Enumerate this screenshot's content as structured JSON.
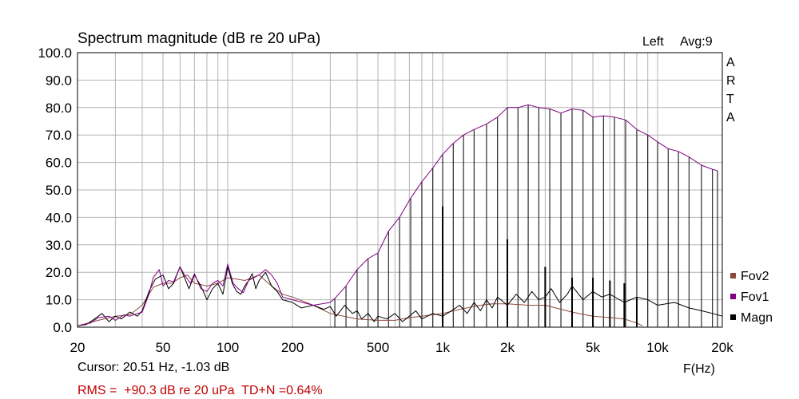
{
  "chart_data": {
    "type": "line",
    "title": "Spectrum magnitude (dB re 20 uPa)",
    "channel_label": "Left",
    "avg_label": "Avg:9",
    "brand_letters": [
      "A",
      "R",
      "T",
      "A"
    ],
    "xlabel": "F(Hz)",
    "ylabel": "",
    "x_scale": "log",
    "xlim": [
      20,
      20000
    ],
    "ylim": [
      0,
      100
    ],
    "grid": true,
    "legend_position": "right",
    "x_ticks": [
      {
        "value": 20,
        "label": "20"
      },
      {
        "value": 50,
        "label": "50"
      },
      {
        "value": 100,
        "label": "100"
      },
      {
        "value": 200,
        "label": "200"
      },
      {
        "value": 500,
        "label": "500"
      },
      {
        "value": 1000,
        "label": "1k"
      },
      {
        "value": 2000,
        "label": "2k"
      },
      {
        "value": 5000,
        "label": "5k"
      },
      {
        "value": 10000,
        "label": "10k"
      },
      {
        "value": 20000,
        "label": "20k"
      }
    ],
    "y_ticks": [
      {
        "value": 0,
        "label": "0.0"
      },
      {
        "value": 10,
        "label": "10.0"
      },
      {
        "value": 20,
        "label": "20.0"
      },
      {
        "value": 30,
        "label": "30.0"
      },
      {
        "value": 40,
        "label": "40.0"
      },
      {
        "value": 50,
        "label": "50.0"
      },
      {
        "value": 60,
        "label": "60.0"
      },
      {
        "value": 70,
        "label": "70.0"
      },
      {
        "value": 80,
        "label": "80.0"
      },
      {
        "value": 90,
        "label": "90.0"
      },
      {
        "value": 100,
        "label": "100.0"
      }
    ],
    "series": [
      {
        "name": "Fov2",
        "color": "#8B4A3A",
        "x": [
          20,
          25,
          30,
          35,
          40,
          45,
          50,
          55,
          60,
          65,
          70,
          75,
          80,
          90,
          100,
          110,
          120,
          130,
          140,
          160,
          180,
          200,
          250,
          300,
          400,
          500,
          600,
          700,
          800,
          1000,
          1200,
          1500,
          1700,
          2000,
          2500,
          3000,
          4000,
          5000,
          6000,
          7000,
          8000,
          8500
        ],
        "y": [
          0.5,
          2.5,
          4.0,
          4.5,
          8.0,
          14.5,
          16.0,
          16.0,
          18.0,
          19.0,
          16.0,
          15.5,
          15.0,
          16.0,
          18.0,
          17.5,
          17.0,
          18.0,
          19.0,
          15.0,
          12.0,
          11.0,
          8.0,
          5.0,
          3.0,
          2.5,
          2.5,
          3.5,
          4.0,
          5.0,
          6.5,
          8.0,
          8.5,
          8.5,
          8.0,
          8.0,
          5.5,
          4.0,
          3.5,
          3.0,
          1.5,
          0.5
        ]
      },
      {
        "name": "Fov1",
        "color": "#800080",
        "x": [
          20,
          23,
          25,
          28,
          30,
          33,
          35,
          38,
          40,
          43,
          45,
          48,
          50,
          53,
          56,
          60,
          63,
          67,
          70,
          75,
          80,
          85,
          90,
          95,
          100,
          106,
          112,
          118,
          125,
          132,
          140,
          150,
          160,
          170,
          180,
          200,
          250,
          300,
          315,
          355,
          400,
          450,
          500,
          560,
          630,
          710,
          800,
          900,
          1000,
          1120,
          1250,
          1400,
          1600,
          1800,
          2000,
          2240,
          2500,
          2800,
          3150,
          3550,
          4000,
          4500,
          5000,
          5600,
          6300,
          7100,
          8000,
          9000,
          10000,
          11200,
          12500,
          14000,
          16000,
          18000,
          19000
        ],
        "y": [
          0.5,
          1.5,
          3.5,
          4.0,
          2.5,
          4.5,
          4.0,
          5.0,
          5.5,
          12.0,
          18.0,
          21.0,
          15.0,
          17.0,
          16.5,
          22.0,
          19.0,
          16.0,
          19.5,
          14.0,
          13.0,
          16.0,
          17.0,
          15.0,
          23.0,
          16.0,
          14.0,
          12.5,
          17.0,
          18.0,
          19.0,
          21.0,
          19.0,
          16.0,
          11.0,
          10.0,
          8.0,
          9.0,
          10.5,
          15.0,
          21.0,
          25.0,
          27.0,
          35.0,
          40.0,
          47.0,
          53.0,
          58.0,
          63.0,
          67.0,
          70.0,
          72.0,
          74.0,
          76.5,
          80.0,
          80.0,
          81.0,
          80.0,
          79.5,
          78.0,
          79.5,
          79.0,
          76.5,
          77.0,
          76.5,
          75.5,
          72.0,
          70.0,
          67.5,
          65.0,
          64.0,
          62.0,
          59.0,
          57.5,
          57.0
        ]
      },
      {
        "name": "Magn",
        "color": "#000000",
        "x": [
          20,
          22,
          24,
          26,
          28,
          30,
          32,
          35,
          38,
          40,
          43,
          46,
          50,
          53,
          56,
          60,
          63,
          66,
          70,
          75,
          80,
          85,
          90,
          95,
          100,
          105,
          110,
          115,
          120,
          125,
          130,
          135,
          140,
          150,
          160,
          170,
          180,
          200,
          220,
          250,
          280,
          300,
          320,
          350,
          380,
          400,
          420,
          450,
          480,
          500,
          550,
          600,
          650,
          700,
          750,
          800,
          900,
          1000,
          1100,
          1200,
          1300,
          1400,
          1500,
          1600,
          1700,
          1800,
          2000,
          2200,
          2400,
          2600,
          2800,
          3000,
          3200,
          3500,
          3800,
          4000,
          4500,
          5000,
          5500,
          6000,
          7000,
          8000,
          9000,
          10000,
          12000,
          14000,
          16000,
          18000,
          20000
        ],
        "y": [
          0.5,
          1.0,
          3.0,
          5.0,
          2.0,
          4.0,
          3.0,
          5.5,
          4.0,
          6.0,
          13.0,
          17.5,
          19.0,
          14.0,
          16.0,
          22.0,
          18.0,
          14.0,
          19.0,
          15.0,
          10.0,
          14.0,
          16.0,
          12.0,
          22.0,
          16.0,
          13.0,
          12.0,
          15.0,
          17.0,
          19.5,
          14.0,
          17.0,
          20.0,
          15.0,
          13.0,
          10.0,
          9.0,
          7.0,
          8.0,
          6.5,
          7.5,
          4.0,
          8.0,
          5.0,
          6.0,
          3.0,
          5.0,
          2.0,
          4.0,
          3.0,
          5.0,
          2.0,
          4.0,
          6.0,
          3.0,
          5.0,
          4.0,
          6.0,
          8.0,
          5.0,
          9.0,
          6.0,
          10.0,
          7.0,
          11.0,
          8.0,
          12.0,
          9.0,
          13.0,
          10.0,
          11.0,
          14.0,
          9.0,
          12.0,
          15.0,
          10.0,
          13.0,
          11.0,
          12.0,
          9.0,
          11.0,
          10.0,
          8.0,
          9.0,
          7.0,
          6.0,
          5.0,
          4.0
        ]
      }
    ],
    "peak_spikes": {
      "color": "#000000",
      "x": [
        1000,
        2000,
        3000,
        4000,
        5000,
        6000,
        7000,
        8000
      ],
      "y": [
        44.0,
        32.0,
        22.0,
        18.0,
        18.0,
        17.0,
        16.0,
        11.0
      ]
    },
    "harmonic_lines": {
      "color": "#000000",
      "x": [
        315,
        355,
        400,
        450,
        500,
        560,
        630,
        710,
        800,
        900,
        1000,
        1120,
        1250,
        1400,
        1600,
        1800,
        2000,
        2240,
        2500,
        2800,
        3150,
        3550,
        4000,
        4500,
        5000,
        5600,
        6300,
        7100,
        8000,
        9000,
        10000,
        11200,
        12500,
        14000,
        16000,
        18000,
        19000
      ],
      "y": [
        10.5,
        15.0,
        21.0,
        25.0,
        27.0,
        35.0,
        40.0,
        47.0,
        53.0,
        58.0,
        63.0,
        67.0,
        70.0,
        72.0,
        74.0,
        76.5,
        80.0,
        80.0,
        81.0,
        80.0,
        79.5,
        78.0,
        79.5,
        79.0,
        76.5,
        77.0,
        76.5,
        75.5,
        72.0,
        70.0,
        67.5,
        65.0,
        64.0,
        62.0,
        59.0,
        57.5,
        57.0
      ]
    }
  },
  "status": {
    "cursor_text": "Cursor: 20.51 Hz, -1.03 dB",
    "rms_text": "RMS =  +90.3 dB re 20 uPa  TD+N =0.64%",
    "rms_color": "#C00000"
  }
}
